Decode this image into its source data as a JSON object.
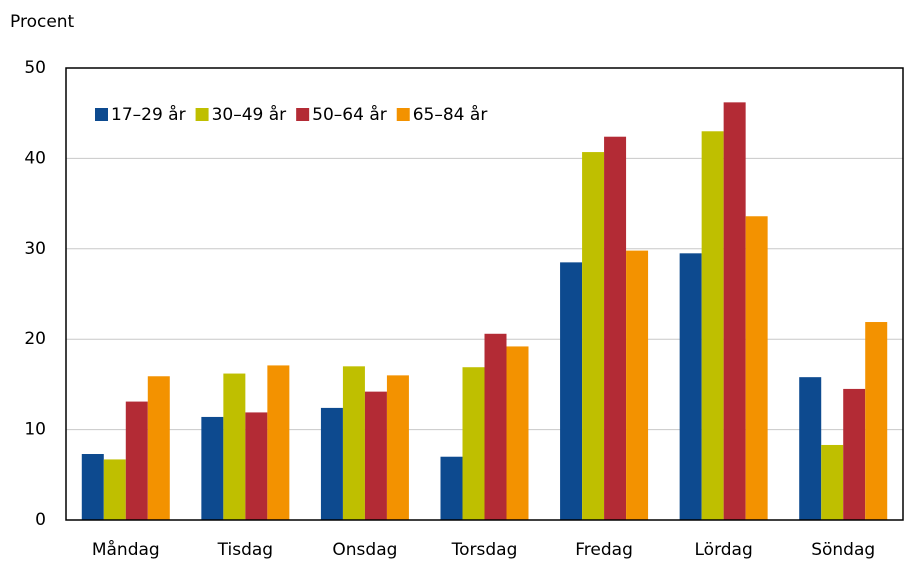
{
  "chart_data": {
    "type": "bar",
    "y_label": "Procent",
    "categories": [
      "Måndag",
      "Tisdag",
      "Onsdag",
      "Torsdag",
      "Fredag",
      "Lördag",
      "Söndag"
    ],
    "series": [
      {
        "name": "17–29 år",
        "color": "#0d4a8f",
        "values": [
          7.3,
          11.4,
          12.4,
          7.0,
          28.5,
          29.5,
          15.8
        ]
      },
      {
        "name": "30–49 år",
        "color": "#bfbf00",
        "values": [
          6.7,
          16.2,
          17.0,
          16.9,
          40.7,
          43.0,
          8.3
        ]
      },
      {
        "name": "50–64 år",
        "color": "#b32b35",
        "values": [
          13.1,
          11.9,
          14.2,
          20.6,
          42.4,
          46.2,
          14.5
        ]
      },
      {
        "name": "65–84 år",
        "color": "#f39200",
        "values": [
          15.9,
          17.1,
          16.0,
          19.2,
          29.8,
          33.6,
          21.9
        ]
      }
    ],
    "ylim": [
      0,
      50
    ],
    "yticks": [
      0,
      10,
      20,
      30,
      40,
      50
    ],
    "grid": true,
    "legend": "top-left"
  }
}
